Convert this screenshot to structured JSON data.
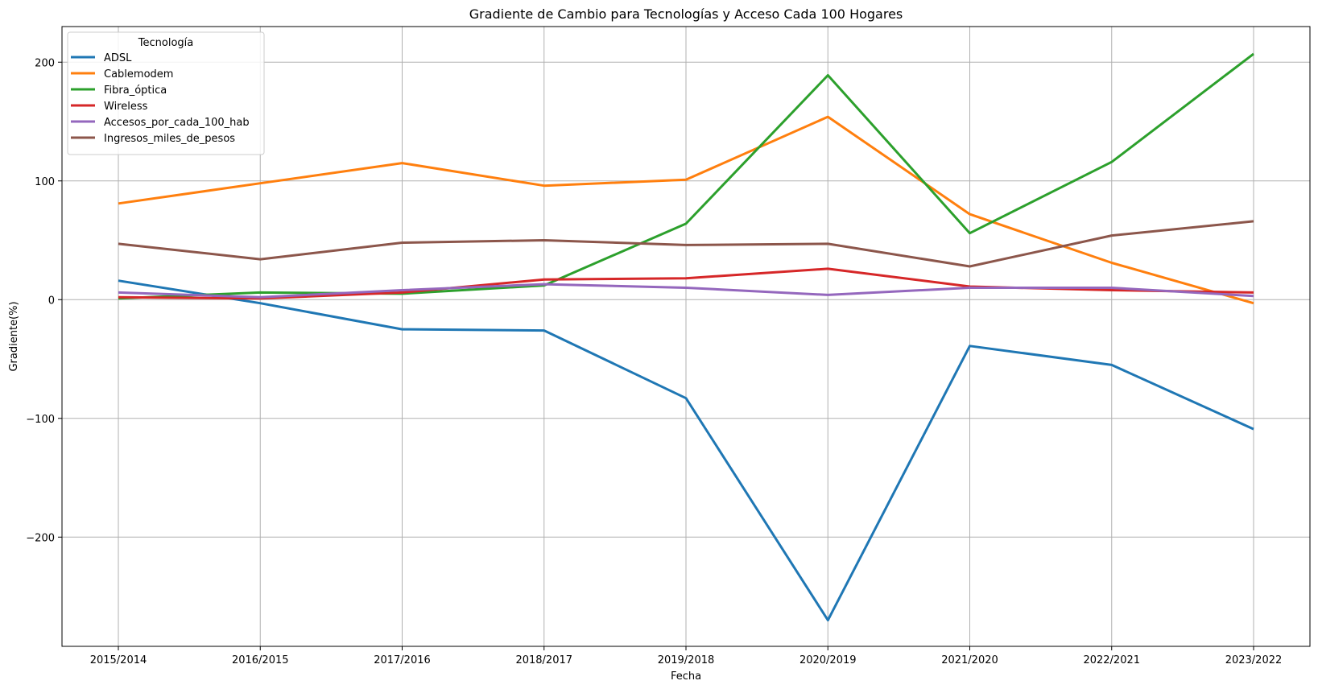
{
  "chart_data": {
    "type": "line",
    "title": "Gradiente de Cambio para Tecnologías y Acceso Cada 100 Hogares",
    "xlabel": "Fecha",
    "ylabel": "Gradiente(%)",
    "categories": [
      "2015/2014",
      "2016/2015",
      "2017/2016",
      "2018/2017",
      "2019/2018",
      "2020/2019",
      "2021/2020",
      "2022/2021",
      "2023/2022"
    ],
    "ylim": [
      -292,
      230
    ],
    "yticks": [
      200,
      100,
      0,
      -100,
      -200
    ],
    "ytick_labels": [
      "200",
      "100",
      "0",
      "−100",
      "−200"
    ],
    "grid": true,
    "legend": {
      "title": "Tecnología",
      "position": "top-left"
    },
    "series": [
      {
        "name": "ADSL",
        "color": "#1f77b4",
        "values": [
          16,
          -3,
          -25,
          -26,
          -83,
          -270,
          -39,
          -55,
          -109
        ]
      },
      {
        "name": "Cablemodem",
        "color": "#ff7f0e",
        "values": [
          81,
          98,
          115,
          96,
          101,
          154,
          72,
          31,
          -3
        ]
      },
      {
        "name": "Fibra_óptica",
        "color": "#2ca02c",
        "values": [
          1,
          6,
          5,
          12,
          64,
          189,
          56,
          116,
          207
        ]
      },
      {
        "name": "Wireless",
        "color": "#d62728",
        "values": [
          2,
          1,
          6,
          17,
          18,
          26,
          11,
          8,
          6
        ]
      },
      {
        "name": "Accesos_por_cada_100_hab",
        "color": "#9467bd",
        "values": [
          6,
          2,
          8,
          13,
          10,
          4,
          10,
          10,
          3
        ]
      },
      {
        "name": "Ingresos_miles_de_pesos",
        "color": "#8c564b",
        "values": [
          47,
          34,
          48,
          50,
          46,
          47,
          28,
          54,
          66
        ]
      }
    ]
  }
}
